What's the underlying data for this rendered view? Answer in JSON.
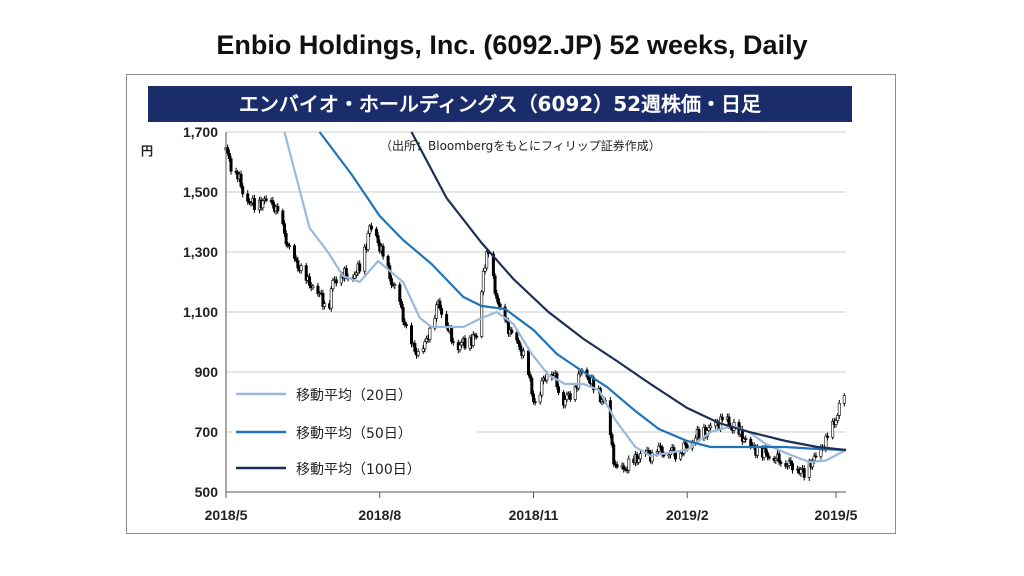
{
  "header": {
    "title": "Enbio Holdings, Inc. (6092.JP) 52 weeks, Daily",
    "chart_title_jp": "エンバイオ・ホールディングス（6092）52週株価・日足"
  },
  "colors": {
    "title_bar": "#1b2c6b",
    "ma20": "#9ab8dc",
    "ma50": "#1f74b8",
    "ma100": "#1c2f55",
    "candle": "#000000",
    "grid": "#cccccc"
  },
  "chart_data": {
    "type": "candlestick",
    "title": "エンバイオ・ホールディングス（6092）52週株価・日足",
    "unit": "円",
    "source": "（出所：Bloombergをもとにフィリップ証券作成）",
    "ylim": [
      500,
      1700
    ],
    "yticks": [
      500,
      700,
      900,
      1100,
      1300,
      1500,
      1700
    ],
    "ytick_labels": [
      "500",
      "700",
      "900",
      "1,100",
      "1,300",
      "1,500",
      "1,700"
    ],
    "xlim": [
      "2018-05-01",
      "2019-05-07"
    ],
    "xticks": [
      "2018-05-01",
      "2018-08-01",
      "2018-11-01",
      "2019-02-01",
      "2019-05-01"
    ],
    "xtick_labels": [
      "2018/5",
      "2018/8",
      "2018/11",
      "2019/2",
      "2019/5"
    ],
    "grid": true,
    "legend_position": "lower-left",
    "close_anchors": [
      [
        "2018-05-01",
        1640
      ],
      [
        "2018-05-04",
        1590
      ],
      [
        "2018-05-08",
        1560
      ],
      [
        "2018-05-11",
        1500
      ],
      [
        "2018-05-15",
        1470
      ],
      [
        "2018-05-19",
        1450
      ],
      [
        "2018-05-23",
        1470
      ],
      [
        "2018-05-29",
        1460
      ],
      [
        "2018-06-02",
        1420
      ],
      [
        "2018-06-07",
        1320
      ],
      [
        "2018-06-11",
        1270
      ],
      [
        "2018-06-15",
        1240
      ],
      [
        "2018-06-19",
        1200
      ],
      [
        "2018-06-23",
        1180
      ],
      [
        "2018-06-27",
        1150
      ],
      [
        "2018-07-01",
        1100
      ],
      [
        "2018-07-04",
        1200
      ],
      [
        "2018-07-08",
        1230
      ],
      [
        "2018-07-13",
        1220
      ],
      [
        "2018-07-18",
        1230
      ],
      [
        "2018-07-22",
        1280
      ],
      [
        "2018-07-26",
        1380
      ],
      [
        "2018-07-30",
        1350
      ],
      [
        "2018-08-04",
        1270
      ],
      [
        "2018-08-08",
        1200
      ],
      [
        "2018-08-12",
        1150
      ],
      [
        "2018-08-16",
        1060
      ],
      [
        "2018-08-20",
        990
      ],
      [
        "2018-08-24",
        960
      ],
      [
        "2018-08-28",
        990
      ],
      [
        "2018-09-01",
        1060
      ],
      [
        "2018-09-05",
        1130
      ],
      [
        "2018-09-09",
        1080
      ],
      [
        "2018-09-13",
        1010
      ],
      [
        "2018-09-17",
        990
      ],
      [
        "2018-09-21",
        1000
      ],
      [
        "2018-09-25",
        1010
      ],
      [
        "2018-09-29",
        1020
      ],
      [
        "2018-10-02",
        1240
      ],
      [
        "2018-10-05",
        1300
      ],
      [
        "2018-10-08",
        1200
      ],
      [
        "2018-10-12",
        1100
      ],
      [
        "2018-10-16",
        1060
      ],
      [
        "2018-10-20",
        1010
      ],
      [
        "2018-10-24",
        980
      ],
      [
        "2018-10-28",
        930
      ],
      [
        "2018-10-31",
        830
      ],
      [
        "2018-11-03",
        780
      ],
      [
        "2018-11-06",
        860
      ],
      [
        "2018-11-10",
        910
      ],
      [
        "2018-11-14",
        880
      ],
      [
        "2018-11-18",
        800
      ],
      [
        "2018-11-22",
        820
      ],
      [
        "2018-11-26",
        850
      ],
      [
        "2018-11-30",
        910
      ],
      [
        "2018-12-04",
        880
      ],
      [
        "2018-12-08",
        840
      ],
      [
        "2018-12-12",
        810
      ],
      [
        "2018-12-14",
        790
      ],
      [
        "2018-12-20",
        580
      ],
      [
        "2018-12-24",
        570
      ],
      [
        "2018-12-28",
        590
      ],
      [
        "2019-01-02",
        610
      ],
      [
        "2019-01-06",
        640
      ],
      [
        "2019-01-10",
        620
      ],
      [
        "2019-01-14",
        650
      ],
      [
        "2019-01-18",
        630
      ],
      [
        "2019-01-22",
        640
      ],
      [
        "2019-01-26",
        620
      ],
      [
        "2019-01-30",
        650
      ],
      [
        "2019-02-03",
        660
      ],
      [
        "2019-02-07",
        690
      ],
      [
        "2019-02-11",
        700
      ],
      [
        "2019-02-15",
        710
      ],
      [
        "2019-02-19",
        730
      ],
      [
        "2019-02-23",
        740
      ],
      [
        "2019-02-27",
        720
      ],
      [
        "2019-03-03",
        700
      ],
      [
        "2019-03-07",
        680
      ],
      [
        "2019-03-11",
        650
      ],
      [
        "2019-03-15",
        640
      ],
      [
        "2019-03-19",
        630
      ],
      [
        "2019-03-23",
        620
      ],
      [
        "2019-03-27",
        610
      ],
      [
        "2019-03-31",
        600
      ],
      [
        "2019-04-04",
        590
      ],
      [
        "2019-04-08",
        580
      ],
      [
        "2019-04-12",
        560
      ],
      [
        "2019-04-16",
        600
      ],
      [
        "2019-04-20",
        620
      ],
      [
        "2019-04-24",
        660
      ],
      [
        "2019-04-28",
        700
      ],
      [
        "2019-05-02",
        760
      ],
      [
        "2019-05-06",
        820
      ]
    ],
    "series": [
      {
        "name": "移動平均（20日）",
        "points": [
          [
            "2018-06-05",
            1700
          ],
          [
            "2018-06-20",
            1380
          ],
          [
            "2018-07-01",
            1300
          ],
          [
            "2018-07-10",
            1220
          ],
          [
            "2018-07-20",
            1200
          ],
          [
            "2018-07-31",
            1270
          ],
          [
            "2018-08-15",
            1200
          ],
          [
            "2018-08-25",
            1080
          ],
          [
            "2018-09-01",
            1050
          ],
          [
            "2018-09-10",
            1050
          ],
          [
            "2018-09-20",
            1050
          ],
          [
            "2018-10-01",
            1080
          ],
          [
            "2018-10-10",
            1100
          ],
          [
            "2018-10-20",
            1060
          ],
          [
            "2018-10-31",
            960
          ],
          [
            "2018-11-10",
            890
          ],
          [
            "2018-11-20",
            860
          ],
          [
            "2018-12-01",
            860
          ],
          [
            "2018-12-10",
            840
          ],
          [
            "2018-12-20",
            740
          ],
          [
            "2019-01-01",
            650
          ],
          [
            "2019-01-10",
            620
          ],
          [
            "2019-01-20",
            630
          ],
          [
            "2019-02-01",
            640
          ],
          [
            "2019-02-15",
            700
          ],
          [
            "2019-02-28",
            720
          ],
          [
            "2019-03-10",
            700
          ],
          [
            "2019-03-20",
            660
          ],
          [
            "2019-04-01",
            630
          ],
          [
            "2019-04-15",
            600
          ],
          [
            "2019-04-25",
            605
          ],
          [
            "2019-05-07",
            640
          ]
        ]
      },
      {
        "name": "移動平均（50日）",
        "points": [
          [
            "2018-06-26",
            1700
          ],
          [
            "2018-07-15",
            1560
          ],
          [
            "2018-08-01",
            1420
          ],
          [
            "2018-08-15",
            1340
          ],
          [
            "2018-09-01",
            1260
          ],
          [
            "2018-09-20",
            1150
          ],
          [
            "2018-10-01",
            1120
          ],
          [
            "2018-10-15",
            1110
          ],
          [
            "2018-11-01",
            1040
          ],
          [
            "2018-11-15",
            960
          ],
          [
            "2018-12-01",
            900
          ],
          [
            "2018-12-15",
            850
          ],
          [
            "2019-01-01",
            770
          ],
          [
            "2019-01-15",
            710
          ],
          [
            "2019-02-01",
            670
          ],
          [
            "2019-02-15",
            650
          ],
          [
            "2019-03-01",
            650
          ],
          [
            "2019-03-15",
            650
          ],
          [
            "2019-04-01",
            650
          ],
          [
            "2019-04-15",
            645
          ],
          [
            "2019-05-07",
            640
          ]
        ]
      },
      {
        "name": "移動平均（100日）",
        "points": [
          [
            "2018-08-20",
            1700
          ],
          [
            "2018-09-10",
            1480
          ],
          [
            "2018-10-01",
            1330
          ],
          [
            "2018-10-20",
            1210
          ],
          [
            "2018-11-10",
            1100
          ],
          [
            "2018-12-01",
            1010
          ],
          [
            "2018-12-20",
            940
          ],
          [
            "2019-01-10",
            860
          ],
          [
            "2019-02-01",
            780
          ],
          [
            "2019-02-20",
            730
          ],
          [
            "2019-03-10",
            700
          ],
          [
            "2019-04-01",
            670
          ],
          [
            "2019-04-20",
            650
          ],
          [
            "2019-05-07",
            640
          ]
        ]
      }
    ]
  }
}
